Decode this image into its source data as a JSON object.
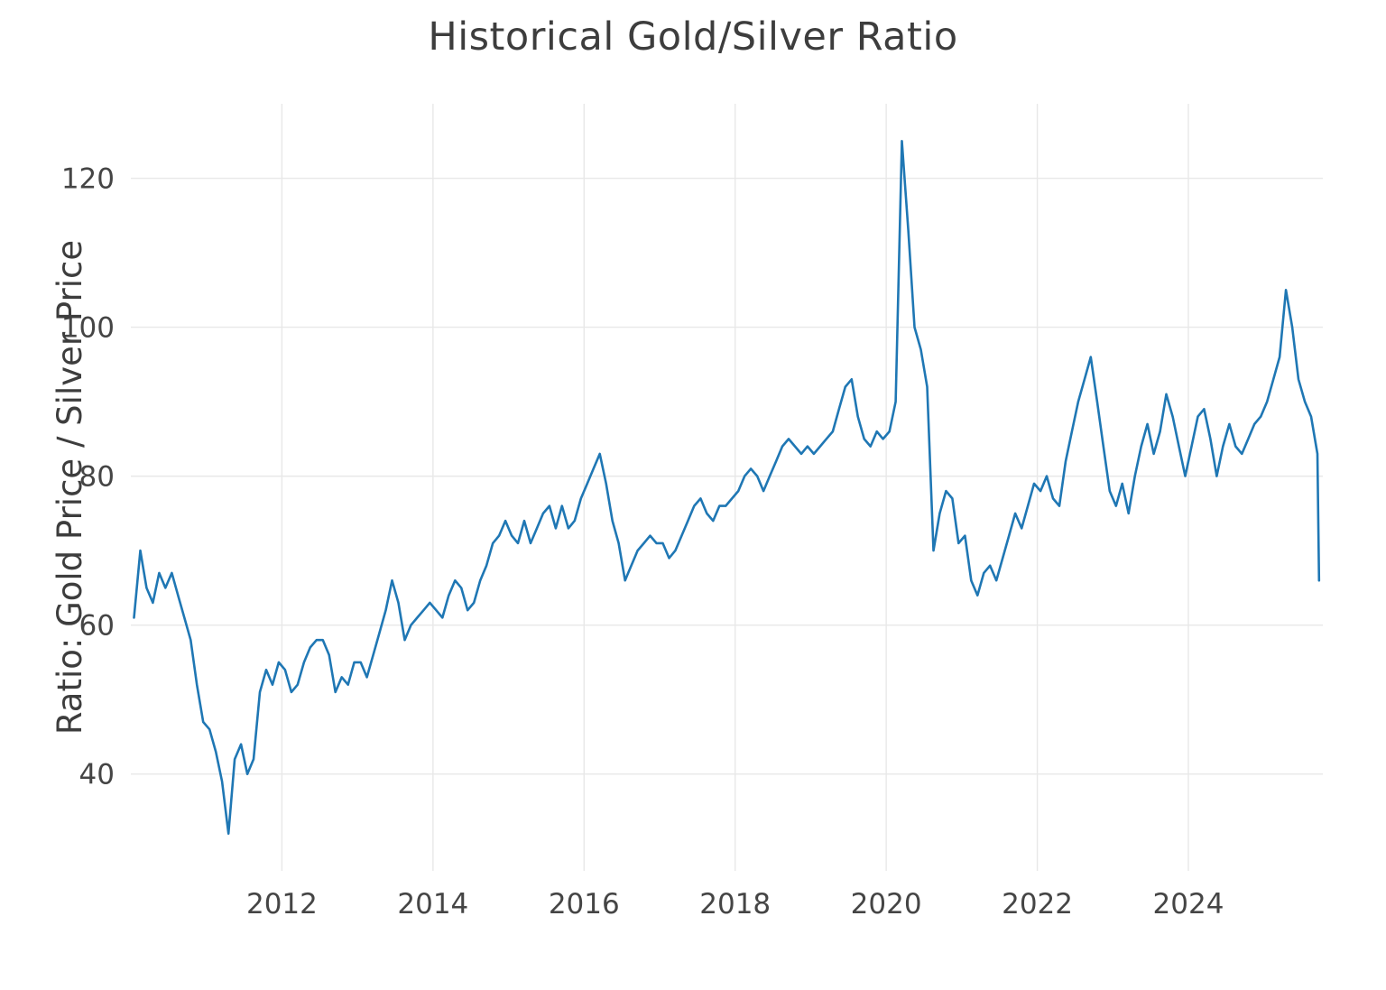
{
  "chart_data": {
    "type": "line",
    "title": "Historical Gold/Silver Ratio",
    "xlabel": "",
    "ylabel": "Ratio: Gold Price / Silver Price",
    "x_ticks": [
      2012,
      2014,
      2016,
      2018,
      2020,
      2022,
      2024
    ],
    "y_ticks": [
      40,
      60,
      80,
      100,
      120
    ],
    "xlim": [
      2010.0,
      2025.78
    ],
    "ylim": [
      27,
      130
    ],
    "grid": true,
    "legend": "none",
    "background_color": "#ffffff",
    "grid_color": "#e8e8e8",
    "line_color": "#1f77b4",
    "tick_color": "#454545",
    "series": [
      {
        "name": "Gold/Silver Ratio",
        "x": [
          2010.042,
          2010.125,
          2010.208,
          2010.292,
          2010.375,
          2010.458,
          2010.542,
          2010.625,
          2010.708,
          2010.792,
          2010.875,
          2010.958,
          2011.042,
          2011.125,
          2011.208,
          2011.292,
          2011.375,
          2011.458,
          2011.542,
          2011.625,
          2011.708,
          2011.792,
          2011.875,
          2011.958,
          2012.042,
          2012.125,
          2012.208,
          2012.292,
          2012.375,
          2012.458,
          2012.542,
          2012.625,
          2012.708,
          2012.792,
          2012.875,
          2012.958,
          2013.042,
          2013.125,
          2013.208,
          2013.292,
          2013.375,
          2013.458,
          2013.542,
          2013.625,
          2013.708,
          2013.792,
          2013.875,
          2013.958,
          2014.042,
          2014.125,
          2014.208,
          2014.292,
          2014.375,
          2014.458,
          2014.542,
          2014.625,
          2014.708,
          2014.792,
          2014.875,
          2014.958,
          2015.042,
          2015.125,
          2015.208,
          2015.292,
          2015.375,
          2015.458,
          2015.542,
          2015.625,
          2015.708,
          2015.792,
          2015.875,
          2015.958,
          2016.042,
          2016.125,
          2016.208,
          2016.292,
          2016.375,
          2016.458,
          2016.542,
          2016.625,
          2016.708,
          2016.792,
          2016.875,
          2016.958,
          2017.042,
          2017.125,
          2017.208,
          2017.292,
          2017.375,
          2017.458,
          2017.542,
          2017.625,
          2017.708,
          2017.792,
          2017.875,
          2017.958,
          2018.042,
          2018.125,
          2018.208,
          2018.292,
          2018.375,
          2018.458,
          2018.542,
          2018.625,
          2018.708,
          2018.792,
          2018.875,
          2018.958,
          2019.042,
          2019.125,
          2019.208,
          2019.292,
          2019.375,
          2019.458,
          2019.542,
          2019.625,
          2019.708,
          2019.792,
          2019.875,
          2019.958,
          2020.042,
          2020.125,
          2020.208,
          2020.292,
          2020.375,
          2020.458,
          2020.542,
          2020.625,
          2020.708,
          2020.792,
          2020.875,
          2020.958,
          2021.042,
          2021.125,
          2021.208,
          2021.292,
          2021.375,
          2021.458,
          2021.542,
          2021.625,
          2021.708,
          2021.792,
          2021.875,
          2021.958,
          2022.042,
          2022.125,
          2022.208,
          2022.292,
          2022.375,
          2022.458,
          2022.542,
          2022.625,
          2022.708,
          2022.792,
          2022.875,
          2022.958,
          2023.042,
          2023.125,
          2023.208,
          2023.292,
          2023.375,
          2023.458,
          2023.542,
          2023.625,
          2023.708,
          2023.792,
          2023.875,
          2023.958,
          2024.042,
          2024.125,
          2024.208,
          2024.292,
          2024.375,
          2024.458,
          2024.542,
          2024.625,
          2024.708,
          2024.792,
          2024.875,
          2024.958,
          2025.042,
          2025.125,
          2025.208,
          2025.292,
          2025.375,
          2025.458,
          2025.542,
          2025.625,
          2025.708,
          2025.73
        ],
        "y": [
          61,
          70,
          65,
          63,
          67,
          65,
          67,
          64,
          61,
          58,
          52,
          47,
          46,
          43,
          39,
          32,
          42,
          44,
          40,
          42,
          51,
          54,
          52,
          55,
          54,
          51,
          52,
          55,
          57,
          58,
          58,
          56,
          51,
          53,
          52,
          55,
          55,
          53,
          56,
          59,
          62,
          66,
          63,
          58,
          60,
          61,
          62,
          63,
          62,
          61,
          64,
          66,
          65,
          62,
          63,
          66,
          68,
          71,
          72,
          74,
          72,
          71,
          74,
          71,
          73,
          75,
          76,
          73,
          76,
          73,
          74,
          77,
          79,
          81,
          83,
          79,
          74,
          71,
          66,
          68,
          70,
          71,
          72,
          71,
          71,
          69,
          70,
          72,
          74,
          76,
          77,
          75,
          74,
          76,
          76,
          77,
          78,
          80,
          81,
          80,
          78,
          80,
          82,
          84,
          85,
          84,
          83,
          84,
          83,
          84,
          85,
          86,
          89,
          92,
          93,
          88,
          85,
          84,
          86,
          85,
          86,
          90,
          125,
          113,
          100,
          97,
          92,
          70,
          75,
          78,
          77,
          71,
          72,
          66,
          64,
          67,
          68,
          66,
          69,
          72,
          75,
          73,
          76,
          79,
          78,
          80,
          77,
          76,
          82,
          86,
          90,
          93,
          96,
          90,
          84,
          78,
          76,
          79,
          75,
          80,
          84,
          87,
          83,
          86,
          91,
          88,
          84,
          80,
          84,
          88,
          89,
          85,
          80,
          84,
          87,
          84,
          83,
          85,
          87,
          88,
          90,
          93,
          96,
          105,
          100,
          93,
          90,
          88,
          83,
          66
        ]
      }
    ]
  }
}
